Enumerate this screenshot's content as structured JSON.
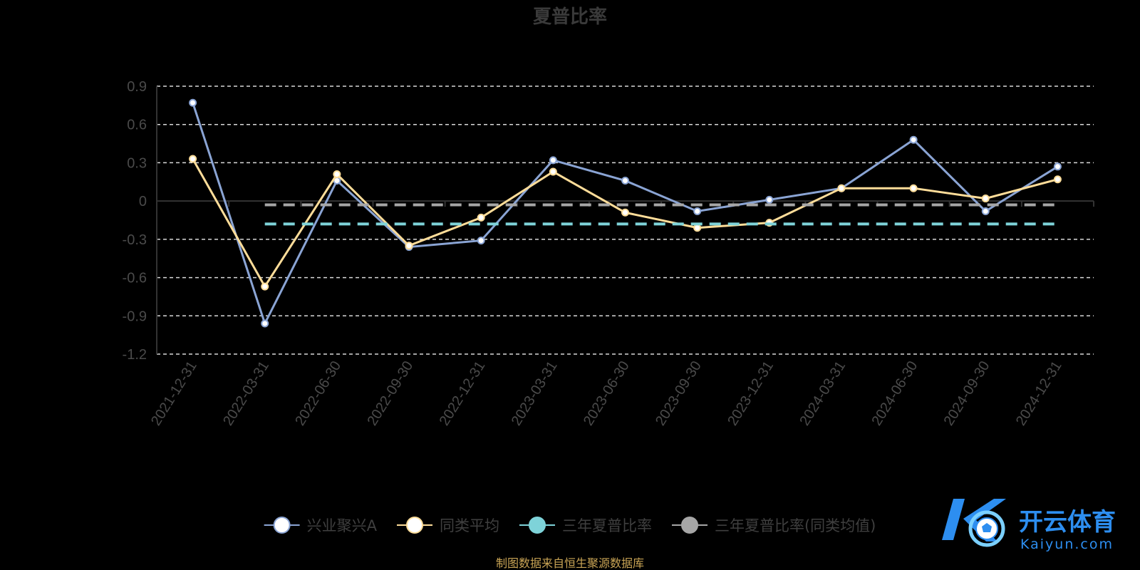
{
  "chart_data": {
    "type": "line",
    "title": "夏普比率",
    "categories": [
      "2021-12-31",
      "2022-03-31",
      "2022-06-30",
      "2022-09-30",
      "2022-12-31",
      "2023-03-31",
      "2023-06-30",
      "2023-09-30",
      "2023-12-31",
      "2024-03-31",
      "2024-06-30",
      "2024-09-30",
      "2024-12-31"
    ],
    "ylim": [
      -1.2,
      0.9
    ],
    "yticks": [
      0.9,
      0.6,
      0.3,
      0,
      -0.3,
      -0.6,
      -0.9,
      -1.2
    ],
    "ytick_labels": [
      "0.9",
      "0.6",
      "0.3",
      "0",
      "-0.3",
      "-0.6",
      "-0.9",
      "-1.2"
    ],
    "grid": true,
    "legend_position": "bottom",
    "series": [
      {
        "name": "兴业聚兴A",
        "color": "#8aa4d4",
        "style": "solid",
        "values": [
          0.77,
          -0.96,
          0.16,
          -0.36,
          -0.31,
          0.32,
          0.16,
          -0.08,
          0.01,
          0.1,
          0.48,
          -0.08,
          0.27
        ]
      },
      {
        "name": "同类平均",
        "color": "#ffdd99",
        "style": "solid",
        "values": [
          0.33,
          -0.67,
          0.21,
          -0.35,
          -0.13,
          0.23,
          -0.09,
          -0.21,
          -0.17,
          0.1,
          0.1,
          0.02,
          0.17
        ]
      },
      {
        "name": "三年夏普比率",
        "color": "#7ed3d9",
        "style": "dashed",
        "values": [
          null,
          -0.18,
          -0.18,
          -0.18,
          -0.18,
          -0.18,
          -0.18,
          -0.18,
          -0.18,
          -0.18,
          -0.18,
          -0.18,
          -0.18
        ]
      },
      {
        "name": "三年夏普比率(同类均值)",
        "color": "#a6a6a6",
        "style": "dashed",
        "values": [
          null,
          -0.03,
          -0.03,
          -0.03,
          -0.03,
          -0.03,
          -0.03,
          -0.03,
          -0.03,
          -0.03,
          -0.03,
          -0.03,
          -0.03
        ]
      }
    ]
  },
  "source_text": "制图数据来自恒生聚源数据库",
  "logo": {
    "brand_cn": "开云体育",
    "brand_en": "Kaiyun.com",
    "colors": {
      "primary": "#2d8ef0",
      "secondary": "#7bd0ff"
    }
  }
}
